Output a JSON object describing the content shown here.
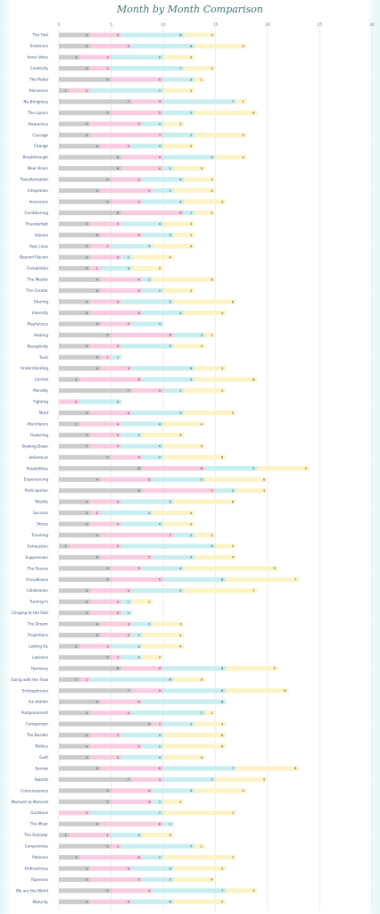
{
  "title": "Month by Month Comparison",
  "chart_data": {
    "type": "bar",
    "orientation": "horizontal",
    "stacked": true,
    "title": "Month by Month Comparison",
    "xlim": [
      0,
      30
    ],
    "xticks": [
      0,
      5,
      10,
      15,
      20,
      25,
      30
    ],
    "grid": true,
    "legend": "none",
    "colors": [
      "#cccccc",
      "#f8cce0",
      "#c8eef0",
      "#fcf3c6"
    ],
    "categories": [
      "The Fool",
      "Existence",
      "Inner Voice",
      "Creativity",
      "The Rebel",
      "Aloneness",
      "No-thingness",
      "The Lovers",
      "Awareness",
      "Courage",
      "Change",
      "Breakthrough",
      "New Vision",
      "Transformation",
      "Integration",
      "Innocence",
      "Conditioning",
      "Thunderbolt",
      "Silence",
      "Past Lives",
      "Beyond Illusion",
      "Completion",
      "The Master",
      "The Creator",
      "Sharing",
      "Intensity",
      "Playfulness",
      "Healing",
      "Receptivity",
      "Trust",
      "Understanding",
      "Control",
      "Morality",
      "Fighting",
      "Mind",
      "Abundance",
      "Flowering",
      "Slowing Down",
      "Adventure",
      "Possibilities",
      "Experiencing",
      "Participation",
      "Totality",
      "Success",
      "Stress",
      "Traveling",
      "Exhaustion",
      "Suppression",
      "The Source",
      "Friendliness",
      "Celebration",
      "Turning In",
      "Clinging to the Past",
      "The Dream",
      "Projections",
      "Letting Go",
      "Laziness",
      "Harmony",
      "Going with the Flow",
      "Schizophrenia",
      "Ice-olation",
      "Postponement",
      "Comparison",
      "The Burden",
      "Politics",
      "Guilt",
      "Sorrow",
      "Rebirth",
      "Consciousness",
      "Moment to Moment",
      "Guidance",
      "The Miser",
      "The Outsider",
      "Compromise",
      "Patience",
      "Ordinariness",
      "Ripeness",
      "We are the World",
      "Maturity"
    ],
    "series": [
      {
        "values": [
          3,
          3,
          2,
          3,
          5,
          1,
          7,
          5,
          3,
          3,
          4,
          6,
          6,
          5,
          4,
          5,
          6,
          3,
          4,
          3,
          3,
          3,
          4,
          4,
          3,
          3,
          4,
          5,
          3,
          4,
          4,
          2,
          7,
          0,
          3,
          2,
          3,
          3,
          5,
          8,
          4,
          8,
          3,
          3,
          3,
          4,
          1,
          4,
          5,
          5,
          3,
          3,
          3,
          4,
          4,
          2,
          5,
          6,
          2,
          7,
          4,
          3,
          9,
          3,
          3,
          3,
          4,
          7,
          5,
          5,
          0,
          4,
          1,
          5,
          2,
          3,
          3,
          5,
          3
        ]
      },
      {
        "values": [
          3,
          4,
          3,
          2,
          5,
          2,
          3,
          5,
          5,
          7,
          3,
          4,
          4,
          3,
          5,
          3,
          6,
          3,
          4,
          2,
          3,
          1,
          4,
          4,
          3,
          5,
          3,
          6,
          3,
          1,
          3,
          6,
          3,
          2,
          4,
          4,
          3,
          3,
          3,
          6,
          5,
          7,
          3,
          1,
          3,
          7,
          5,
          5,
          3,
          5,
          4,
          3,
          3,
          3,
          3,
          3,
          1,
          4,
          1,
          3,
          4,
          4,
          1,
          3,
          5,
          3,
          6,
          3,
          4,
          4,
          3,
          6,
          4,
          1,
          6,
          4,
          5,
          4,
          4
        ]
      },
      {
        "values": [
          6,
          6,
          5,
          7,
          3,
          7,
          7,
          3,
          2,
          3,
          3,
          5,
          1,
          4,
          2,
          4,
          1,
          4,
          3,
          4,
          1,
          3,
          1,
          2,
          5,
          4,
          3,
          3,
          5,
          1,
          6,
          5,
          2,
          4,
          5,
          4,
          2,
          4,
          2,
          5,
          5,
          2,
          5,
          5,
          4,
          2,
          9,
          4,
          4,
          6,
          5,
          1,
          1,
          2,
          1,
          3,
          2,
          6,
          8,
          6,
          8,
          7,
          3,
          4,
          2,
          4,
          7,
          5,
          4,
          1,
          7,
          1,
          3,
          7,
          2,
          4,
          3,
          7,
          4
        ]
      },
      {
        "values": [
          3,
          5,
          3,
          3,
          1,
          3,
          1,
          6,
          2,
          5,
          3,
          3,
          3,
          3,
          4,
          4,
          2,
          3,
          2,
          4,
          4,
          3,
          6,
          3,
          6,
          4,
          0,
          1,
          3,
          0,
          3,
          6,
          4,
          0,
          5,
          4,
          4,
          4,
          6,
          5,
          6,
          3,
          6,
          4,
          3,
          2,
          2,
          4,
          9,
          7,
          7,
          2,
          0,
          3,
          4,
          4,
          2,
          5,
          3,
          6,
          0,
          1,
          3,
          6,
          6,
          4,
          6,
          5,
          5,
          2,
          7,
          0,
          3,
          1,
          7,
          5,
          4,
          3,
          5
        ]
      }
    ]
  }
}
